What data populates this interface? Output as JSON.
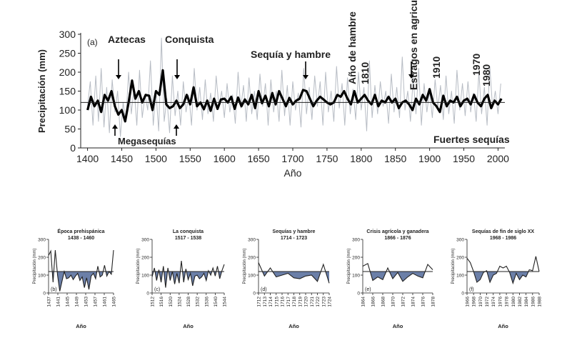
{
  "chart_data": {
    "main": {
      "type": "line",
      "panel_label": "(a)",
      "xlabel": "Año",
      "ylabel": "Precipitación (mm)",
      "xlim": [
        1390,
        2010
      ],
      "ylim": [
        0,
        300
      ],
      "x_ticks": [
        1400,
        1450,
        1500,
        1550,
        1600,
        1650,
        1700,
        1750,
        1800,
        1850,
        1900,
        1950,
        2000
      ],
      "y_ticks": [
        0,
        50,
        100,
        150,
        200,
        250,
        300
      ],
      "mean_line": 120,
      "series": [
        {
          "name": "annual",
          "color": "#b7bcc4",
          "x": [
            1400,
            1404,
            1408,
            1412,
            1416,
            1420,
            1424,
            1428,
            1432,
            1436,
            1440,
            1444,
            1448,
            1452,
            1456,
            1460,
            1464,
            1468,
            1472,
            1476,
            1480,
            1484,
            1488,
            1492,
            1496,
            1500,
            1504,
            1508,
            1512,
            1516,
            1520,
            1524,
            1528,
            1532,
            1536,
            1540,
            1544,
            1548,
            1552,
            1556,
            1560,
            1564,
            1568,
            1572,
            1576,
            1580,
            1584,
            1588,
            1592,
            1596,
            1600,
            1604,
            1608,
            1612,
            1616,
            1620,
            1624,
            1628,
            1632,
            1636,
            1640,
            1644,
            1648,
            1652,
            1656,
            1660,
            1664,
            1668,
            1672,
            1676,
            1680,
            1684,
            1688,
            1692,
            1696,
            1700,
            1704,
            1708,
            1712,
            1716,
            1720,
            1724,
            1728,
            1732,
            1736,
            1740,
            1744,
            1748,
            1752,
            1756,
            1760,
            1764,
            1768,
            1772,
            1776,
            1780,
            1784,
            1788,
            1792,
            1796,
            1800,
            1804,
            1808,
            1812,
            1816,
            1820,
            1824,
            1828,
            1832,
            1836,
            1840,
            1844,
            1848,
            1852,
            1856,
            1860,
            1864,
            1868,
            1872,
            1876,
            1880,
            1884,
            1888,
            1892,
            1896,
            1900,
            1904,
            1908,
            1912,
            1916,
            1920,
            1924,
            1928,
            1932,
            1936,
            1940,
            1944,
            1948,
            1952,
            1956,
            1960,
            1964,
            1968,
            1972,
            1976,
            1980,
            1984,
            1988,
            1992,
            1996,
            2000,
            2004
          ],
          "values": [
            110,
            175,
            60,
            190,
            70,
            210,
            55,
            160,
            40,
            180,
            95,
            150,
            30,
            120,
            70,
            200,
            90,
            160,
            60,
            205,
            80,
            140,
            100,
            230,
            60,
            150,
            45,
            290,
            70,
            130,
            40,
            190,
            85,
            150,
            60,
            175,
            95,
            140,
            60,
            210,
            100,
            160,
            75,
            180,
            90,
            145,
            70,
            190,
            110,
            150,
            80,
            170,
            95,
            140,
            65,
            200,
            105,
            165,
            70,
            185,
            90,
            150,
            75,
            195,
            110,
            170,
            60,
            180,
            95,
            150,
            70,
            205,
            85,
            165,
            60,
            175,
            100,
            145,
            55,
            210,
            90,
            160,
            75,
            190,
            110,
            175,
            60,
            200,
            95,
            150,
            70,
            215,
            105,
            170,
            60,
            185,
            90,
            155,
            75,
            200,
            100,
            160,
            45,
            230,
            80,
            165,
            90,
            175,
            110,
            150,
            65,
            195,
            95,
            160,
            80,
            240,
            100,
            150,
            70,
            185,
            90,
            210,
            60,
            170,
            95,
            150,
            80,
            180,
            105,
            165,
            75,
            190,
            90,
            150,
            65,
            205,
            100,
            170,
            85,
            175,
            95,
            145,
            70,
            200,
            90,
            160,
            60,
            215,
            105,
            150,
            90,
            170
          ]
        },
        {
          "name": "smoothed",
          "color": "#000000",
          "x": [
            1400,
            1405,
            1410,
            1415,
            1420,
            1425,
            1430,
            1435,
            1440,
            1445,
            1450,
            1455,
            1460,
            1465,
            1470,
            1475,
            1480,
            1485,
            1490,
            1495,
            1500,
            1505,
            1510,
            1515,
            1520,
            1525,
            1530,
            1535,
            1540,
            1545,
            1550,
            1555,
            1560,
            1565,
            1570,
            1575,
            1580,
            1585,
            1590,
            1595,
            1600,
            1605,
            1610,
            1615,
            1620,
            1625,
            1630,
            1635,
            1640,
            1645,
            1650,
            1655,
            1660,
            1665,
            1670,
            1675,
            1680,
            1685,
            1690,
            1695,
            1700,
            1705,
            1710,
            1715,
            1720,
            1725,
            1730,
            1735,
            1740,
            1745,
            1750,
            1755,
            1760,
            1765,
            1770,
            1775,
            1780,
            1785,
            1790,
            1795,
            1800,
            1805,
            1810,
            1815,
            1820,
            1825,
            1830,
            1835,
            1840,
            1845,
            1850,
            1855,
            1860,
            1865,
            1870,
            1875,
            1880,
            1885,
            1890,
            1895,
            1900,
            1905,
            1910,
            1915,
            1920,
            1925,
            1930,
            1935,
            1940,
            1945,
            1950,
            1955,
            1960,
            1965,
            1970,
            1975,
            1980,
            1985,
            1990,
            1995,
            2000,
            2005
          ],
          "values": [
            100,
            135,
            110,
            125,
            95,
            140,
            125,
            150,
            110,
            88,
            100,
            70,
            120,
            178,
            130,
            150,
            120,
            140,
            138,
            100,
            150,
            140,
            205,
            115,
            105,
            110,
            125,
            105,
            115,
            140,
            115,
            160,
            110,
            120,
            102,
            125,
            98,
            130,
            103,
            128,
            130,
            120,
            135,
            103,
            133,
            110,
            128,
            115,
            140,
            105,
            150,
            118,
            138,
            110,
            145,
            115,
            150,
            130,
            110,
            132,
            115,
            125,
            130,
            153,
            150,
            130,
            110,
            125,
            135,
            128,
            120,
            115,
            120,
            140,
            135,
            150,
            130,
            115,
            150,
            120,
            130,
            140,
            125,
            115,
            140,
            110,
            125,
            120,
            135,
            120,
            130,
            105,
            120,
            125,
            115,
            100,
            130,
            115,
            140,
            125,
            155,
            120,
            110,
            95,
            138,
            110,
            125,
            120,
            135,
            110,
            125,
            130,
            115,
            140,
            120,
            110,
            130,
            140,
            105,
            125,
            115,
            130
          ]
        }
      ],
      "annotations": {
        "aztecas": "Aztecas",
        "conquista": "Conquista",
        "megasequias": "Megasequías",
        "sequia_hambre": "Sequía y hambre",
        "ano_hambre": "Año de hambre",
        "y1810": "1810",
        "estragos": "Estragos en agricultura",
        "y1910": "1910",
        "y1970": "1970",
        "y1980": "1980",
        "fuertes_sequias": "Fuertes sequías"
      }
    },
    "panels": [
      {
        "id": "b",
        "panel_label": "(b)",
        "title_line1": "Época prehispánica",
        "title_line2": "1438 - 1460",
        "xlabel": "Año",
        "ylabel": "Precipitación (mm)",
        "ylim": [
          0,
          300
        ],
        "y_ticks": [
          0,
          100,
          200,
          300
        ],
        "mean_line": 120,
        "x_tick_labels": [
          "1437",
          "1441",
          "1445",
          "1449",
          "1453",
          "1457",
          "1461",
          "1465"
        ],
        "x": [
          1437,
          1438,
          1439,
          1440,
          1441,
          1442,
          1443,
          1444,
          1445,
          1446,
          1447,
          1448,
          1449,
          1450,
          1451,
          1452,
          1453,
          1454,
          1455,
          1456,
          1457,
          1458,
          1459,
          1460,
          1461,
          1462,
          1463,
          1464,
          1465,
          1466
        ],
        "values": [
          210,
          235,
          60,
          240,
          100,
          10,
          65,
          120,
          80,
          85,
          100,
          75,
          95,
          110,
          70,
          90,
          30,
          85,
          20,
          95,
          110,
          80,
          150,
          90,
          100,
          155,
          95,
          120,
          105,
          240
        ]
      },
      {
        "id": "c",
        "panel_label": "(c)",
        "title_line1": "La conquista",
        "title_line2": "1517 - 1538",
        "xlabel": "Año",
        "ylabel": "Precipitación (mm)",
        "ylim": [
          0,
          300
        ],
        "y_ticks": [
          0,
          100,
          200,
          300
        ],
        "mean_line": 120,
        "x_tick_labels": [
          "1512",
          "1516",
          "1520",
          "1524",
          "1528",
          "1532",
          "1536",
          "1540",
          "1544"
        ],
        "x": [
          1512,
          1513,
          1514,
          1515,
          1516,
          1517,
          1518,
          1519,
          1520,
          1521,
          1522,
          1523,
          1524,
          1525,
          1526,
          1527,
          1528,
          1529,
          1530,
          1531,
          1532,
          1533,
          1534,
          1535,
          1536,
          1537,
          1538,
          1539,
          1540,
          1541,
          1542,
          1543,
          1544
        ],
        "values": [
          90,
          140,
          70,
          130,
          60,
          150,
          30,
          140,
          70,
          120,
          50,
          110,
          55,
          180,
          60,
          135,
          75,
          110,
          40,
          95,
          100,
          80,
          90,
          110,
          70,
          125,
          100,
          140,
          95,
          150,
          80,
          125,
          160
        ]
      },
      {
        "id": "d",
        "panel_label": "(d)",
        "title_line1": "Sequías y hambre",
        "title_line2": "1714 - 1723",
        "xlabel": "Año",
        "ylabel": "Precipitación (mm)",
        "ylim": [
          0,
          300
        ],
        "y_ticks": [
          0,
          100,
          200,
          300
        ],
        "mean_line": 120,
        "x_tick_labels": [
          "1712",
          "1713",
          "1714",
          "1715",
          "1716",
          "1717",
          "1718",
          "1719",
          "1720",
          "1721",
          "1722",
          "1723",
          "1724"
        ],
        "x": [
          1712,
          1713,
          1714,
          1715,
          1716,
          1717,
          1718,
          1719,
          1720,
          1721,
          1722,
          1723,
          1724
        ],
        "values": [
          170,
          95,
          140,
          90,
          100,
          110,
          85,
          80,
          95,
          100,
          65,
          160,
          55
        ]
      },
      {
        "id": "e",
        "panel_label": "(e)",
        "title_line1": "Crisis agrícola y ganadera",
        "title_line2": "1866 - 1876",
        "xlabel": "Año",
        "ylabel": "Precipitación (mm)",
        "ylim": [
          0,
          300
        ],
        "y_ticks": [
          0,
          100,
          200,
          300
        ],
        "mean_line": 120,
        "x_tick_labels": [
          "1864",
          "1866",
          "1868",
          "1870",
          "1872",
          "1874",
          "1876",
          "1878"
        ],
        "x": [
          1864,
          1865,
          1866,
          1867,
          1868,
          1869,
          1870,
          1871,
          1872,
          1873,
          1874,
          1875,
          1876,
          1877,
          1878
        ],
        "values": [
          150,
          165,
          70,
          90,
          75,
          140,
          80,
          115,
          65,
          90,
          110,
          95,
          85,
          160,
          130
        ]
      },
      {
        "id": "f",
        "panel_label": "(f)",
        "title_line1": "Sequías de fin de siglo XX",
        "title_line2": "1968 - 1986",
        "xlabel": "Año",
        "ylabel": "Precipitación (mm)",
        "ylim": [
          0,
          300
        ],
        "y_ticks": [
          0,
          100,
          200,
          300
        ],
        "mean_line": 120,
        "x_tick_labels": [
          "1966",
          "1968",
          "1970",
          "1972",
          "1974",
          "1976",
          "1978",
          "1980",
          "1982",
          "1984",
          "1986",
          "1988"
        ],
        "x": [
          1966,
          1967,
          1968,
          1969,
          1970,
          1971,
          1972,
          1973,
          1974,
          1975,
          1976,
          1977,
          1978,
          1979,
          1980,
          1981,
          1982,
          1983,
          1984,
          1985,
          1986,
          1987,
          1988
        ],
        "values": [
          195,
          170,
          120,
          60,
          75,
          115,
          125,
          60,
          100,
          110,
          150,
          140,
          150,
          115,
          55,
          110,
          75,
          100,
          90,
          130,
          125,
          205,
          120
        ]
      }
    ]
  }
}
